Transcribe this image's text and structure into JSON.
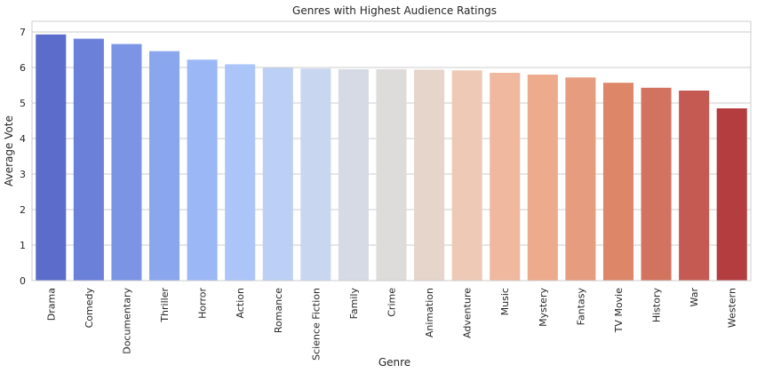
{
  "chart_data": {
    "type": "bar",
    "title": "Genres with Highest Audience Ratings",
    "xlabel": "Genre",
    "ylabel": "Average Vote",
    "categories": [
      "Drama",
      "Comedy",
      "Documentary",
      "Thriller",
      "Horror",
      "Action",
      "Romance",
      "Science Fiction",
      "Family",
      "Crime",
      "Animation",
      "Adventure",
      "Music",
      "Mystery",
      "Fantasy",
      "TV Movie",
      "History",
      "War",
      "Western"
    ],
    "values": [
      6.93,
      6.81,
      6.66,
      6.46,
      6.22,
      6.09,
      5.99,
      5.97,
      5.95,
      5.95,
      5.94,
      5.92,
      5.85,
      5.8,
      5.72,
      5.57,
      5.43,
      5.35,
      4.85
    ],
    "colors": [
      "#5b6ccb",
      "#6b80d9",
      "#7b95e4",
      "#8aa7ee",
      "#9bb7f5",
      "#acc5f9",
      "#bccff4",
      "#c9d6ef",
      "#d5dae5",
      "#dedcdb",
      "#e6d5cb",
      "#eec9b6",
      "#f0b89f",
      "#edaa8c",
      "#e69c7f",
      "#dd8768",
      "#d27360",
      "#c55a52",
      "#b43d3f"
    ],
    "ylim": [
      0,
      7.3
    ],
    "yticks": [
      "0",
      "1",
      "2",
      "3",
      "4",
      "5",
      "6",
      "7"
    ],
    "grid": true,
    "legend": "none"
  }
}
